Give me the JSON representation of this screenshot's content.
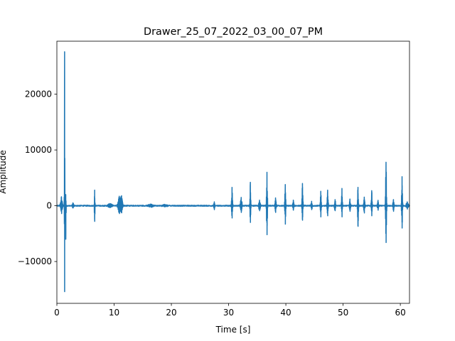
{
  "chart_data": {
    "type": "line",
    "title": "Drawer_25_07_2022_03_00_07_PM",
    "xlabel": "Time [s]",
    "ylabel": "Amplitude",
    "xlim": [
      0,
      61.6
    ],
    "ylim": [
      -17500,
      29500
    ],
    "xticks": [
      0,
      10,
      20,
      30,
      40,
      50,
      60
    ],
    "yticks": [
      -10000,
      0,
      10000,
      20000
    ],
    "ytick_labels": [
      "−10000",
      "0",
      "10000",
      "20000"
    ],
    "grid": false,
    "legend": "none",
    "color": "#1f77b4",
    "duration_s": 61.6,
    "baseline_noise": 90,
    "bursts": [
      {
        "t": 0.8,
        "up": 1600,
        "down": 1400,
        "w": 0.18
      },
      {
        "t": 1.35,
        "up": 27600,
        "down": 15400,
        "w": 0.04
      },
      {
        "t": 1.55,
        "up": 2000,
        "down": 6000,
        "w": 0.06
      },
      {
        "t": 2.8,
        "up": 500,
        "down": 400,
        "w": 0.15
      },
      {
        "t": 6.6,
        "up": 2800,
        "down": 2800,
        "w": 0.06
      },
      {
        "t": 9.3,
        "up": 400,
        "down": 300,
        "w": 0.4
      },
      {
        "t": 10.9,
        "up": 1700,
        "down": 1400,
        "w": 0.25
      },
      {
        "t": 11.3,
        "up": 1800,
        "down": 1200,
        "w": 0.2
      },
      {
        "t": 16.4,
        "up": 250,
        "down": 250,
        "w": 0.5
      },
      {
        "t": 18.8,
        "up": 200,
        "down": 200,
        "w": 0.5
      },
      {
        "t": 27.5,
        "up": 700,
        "down": 700,
        "w": 0.1
      },
      {
        "t": 30.6,
        "up": 3300,
        "down": 2200,
        "w": 0.1
      },
      {
        "t": 32.2,
        "up": 1500,
        "down": 1200,
        "w": 0.15
      },
      {
        "t": 33.8,
        "up": 4200,
        "down": 3000,
        "w": 0.08
      },
      {
        "t": 35.4,
        "up": 1000,
        "down": 900,
        "w": 0.15
      },
      {
        "t": 36.7,
        "up": 6000,
        "down": 5200,
        "w": 0.09
      },
      {
        "t": 38.2,
        "up": 1400,
        "down": 1200,
        "w": 0.12
      },
      {
        "t": 39.9,
        "up": 3800,
        "down": 3300,
        "w": 0.09
      },
      {
        "t": 41.3,
        "up": 1000,
        "down": 800,
        "w": 0.12
      },
      {
        "t": 42.9,
        "up": 4000,
        "down": 2600,
        "w": 0.09
      },
      {
        "t": 44.5,
        "up": 800,
        "down": 700,
        "w": 0.12
      },
      {
        "t": 46.1,
        "up": 2600,
        "down": 2000,
        "w": 0.1
      },
      {
        "t": 47.3,
        "up": 2800,
        "down": 1800,
        "w": 0.1
      },
      {
        "t": 48.6,
        "up": 1100,
        "down": 900,
        "w": 0.12
      },
      {
        "t": 49.8,
        "up": 3100,
        "down": 2000,
        "w": 0.09
      },
      {
        "t": 51.2,
        "up": 1200,
        "down": 1000,
        "w": 0.12
      },
      {
        "t": 52.6,
        "up": 3300,
        "down": 3700,
        "w": 0.09
      },
      {
        "t": 53.7,
        "up": 1500,
        "down": 1300,
        "w": 0.12
      },
      {
        "t": 55.0,
        "up": 2700,
        "down": 1800,
        "w": 0.09
      },
      {
        "t": 56.1,
        "up": 900,
        "down": 800,
        "w": 0.12
      },
      {
        "t": 57.5,
        "up": 7800,
        "down": 6600,
        "w": 0.09
      },
      {
        "t": 58.8,
        "up": 1100,
        "down": 1000,
        "w": 0.12
      },
      {
        "t": 60.3,
        "up": 5200,
        "down": 4000,
        "w": 0.09
      },
      {
        "t": 61.2,
        "up": 700,
        "down": 600,
        "w": 0.2
      }
    ]
  }
}
